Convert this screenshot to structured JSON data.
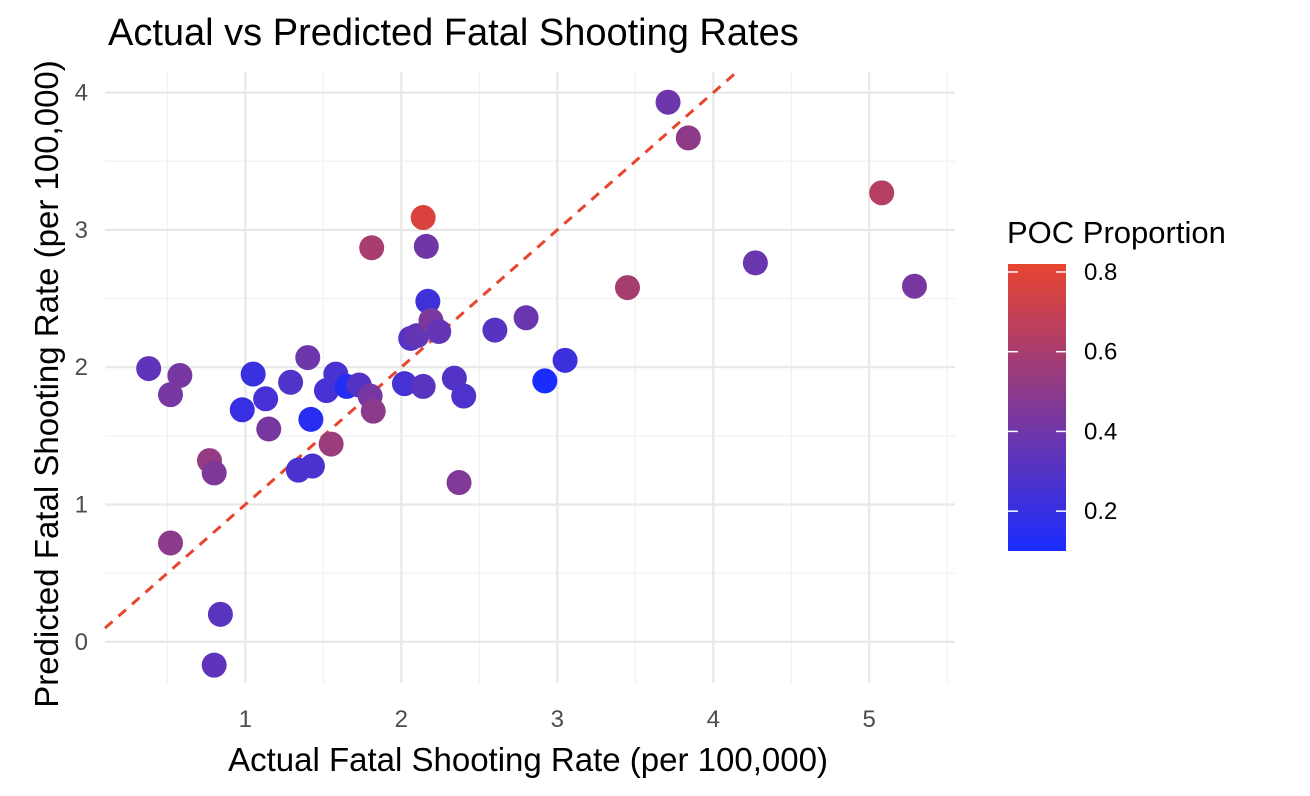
{
  "chart_data": {
    "type": "scatter",
    "title": "Actual vs Predicted Fatal Shooting Rates",
    "xlabel": "Actual Fatal Shooting Rate (per 100,000)",
    "ylabel": "Predicted Fatal Shooting Rate (per 100,000)",
    "xlim": [
      0.1,
      5.55
    ],
    "ylim": [
      -0.3,
      4.15
    ],
    "x_ticks": [
      1,
      2,
      3,
      4,
      5
    ],
    "y_ticks": [
      0,
      1,
      2,
      3,
      4
    ],
    "x_tick_labels": [
      "1",
      "2",
      "3",
      "4",
      "5"
    ],
    "y_tick_labels": [
      "0",
      "1",
      "2",
      "3",
      "4"
    ],
    "grid": true,
    "reference_line": {
      "type": "identity",
      "slope": 1,
      "intercept": 0,
      "style": "dashed",
      "color": "#e8452f"
    },
    "color_scale": {
      "title": "POC Proportion",
      "low_color": "#1a2cff",
      "high_color": "#e8452f",
      "domain": [
        0.1,
        0.82
      ],
      "breaks": [
        0.2,
        0.4,
        0.6,
        0.8
      ],
      "break_labels": [
        "0.2",
        "0.4",
        "0.6",
        "0.8"
      ],
      "legend_position": "right"
    },
    "points": [
      {
        "x": 0.38,
        "y": 1.99,
        "poc": 0.34
      },
      {
        "x": 0.52,
        "y": 1.8,
        "poc": 0.42
      },
      {
        "x": 0.58,
        "y": 1.94,
        "poc": 0.43
      },
      {
        "x": 0.52,
        "y": 0.72,
        "poc": 0.5
      },
      {
        "x": 0.77,
        "y": 1.32,
        "poc": 0.53
      },
      {
        "x": 0.8,
        "y": 1.23,
        "poc": 0.45
      },
      {
        "x": 0.84,
        "y": 0.2,
        "poc": 0.32
      },
      {
        "x": 0.8,
        "y": -0.17,
        "poc": 0.34
      },
      {
        "x": 0.98,
        "y": 1.69,
        "poc": 0.2
      },
      {
        "x": 1.05,
        "y": 1.95,
        "poc": 0.21
      },
      {
        "x": 1.13,
        "y": 1.77,
        "poc": 0.25
      },
      {
        "x": 1.15,
        "y": 1.55,
        "poc": 0.43
      },
      {
        "x": 1.29,
        "y": 1.89,
        "poc": 0.29
      },
      {
        "x": 1.34,
        "y": 1.25,
        "poc": 0.27
      },
      {
        "x": 1.43,
        "y": 1.28,
        "poc": 0.27
      },
      {
        "x": 1.42,
        "y": 1.62,
        "poc": 0.15
      },
      {
        "x": 1.4,
        "y": 2.07,
        "poc": 0.39
      },
      {
        "x": 1.52,
        "y": 1.83,
        "poc": 0.25
      },
      {
        "x": 1.58,
        "y": 1.95,
        "poc": 0.26
      },
      {
        "x": 1.65,
        "y": 1.86,
        "poc": 0.14
      },
      {
        "x": 1.55,
        "y": 1.44,
        "poc": 0.55
      },
      {
        "x": 1.73,
        "y": 1.87,
        "poc": 0.3
      },
      {
        "x": 1.8,
        "y": 1.79,
        "poc": 0.42
      },
      {
        "x": 1.82,
        "y": 1.68,
        "poc": 0.5
      },
      {
        "x": 1.81,
        "y": 2.87,
        "poc": 0.6
      },
      {
        "x": 2.02,
        "y": 1.88,
        "poc": 0.25
      },
      {
        "x": 2.06,
        "y": 2.21,
        "poc": 0.31
      },
      {
        "x": 2.1,
        "y": 2.23,
        "poc": 0.36
      },
      {
        "x": 2.14,
        "y": 1.86,
        "poc": 0.32
      },
      {
        "x": 2.16,
        "y": 2.88,
        "poc": 0.4
      },
      {
        "x": 2.17,
        "y": 2.48,
        "poc": 0.23
      },
      {
        "x": 2.19,
        "y": 2.34,
        "poc": 0.44
      },
      {
        "x": 2.24,
        "y": 2.26,
        "poc": 0.36
      },
      {
        "x": 2.14,
        "y": 3.09,
        "poc": 0.77
      },
      {
        "x": 2.34,
        "y": 1.92,
        "poc": 0.3
      },
      {
        "x": 2.37,
        "y": 1.16,
        "poc": 0.46
      },
      {
        "x": 2.4,
        "y": 1.79,
        "poc": 0.28
      },
      {
        "x": 2.6,
        "y": 2.27,
        "poc": 0.31
      },
      {
        "x": 2.8,
        "y": 2.36,
        "poc": 0.38
      },
      {
        "x": 2.92,
        "y": 1.9,
        "poc": 0.1
      },
      {
        "x": 3.05,
        "y": 2.05,
        "poc": 0.22
      },
      {
        "x": 3.45,
        "y": 2.58,
        "poc": 0.59
      },
      {
        "x": 3.71,
        "y": 3.93,
        "poc": 0.39
      },
      {
        "x": 3.84,
        "y": 3.67,
        "poc": 0.51
      },
      {
        "x": 4.27,
        "y": 2.76,
        "poc": 0.38
      },
      {
        "x": 5.08,
        "y": 3.27,
        "poc": 0.64
      },
      {
        "x": 5.29,
        "y": 2.59,
        "poc": 0.43
      }
    ]
  }
}
